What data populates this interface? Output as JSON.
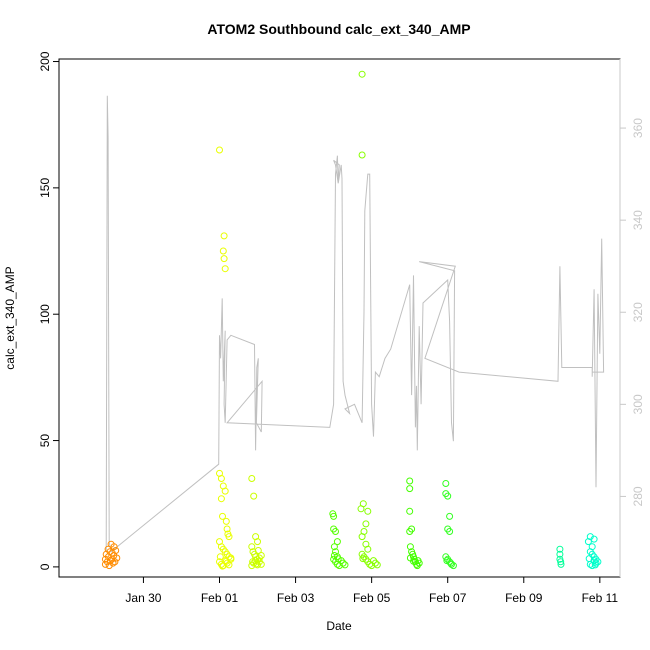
{
  "chart_data": {
    "type": "scatter",
    "title": "ATOM2 Southbound calc_ext_340_AMP",
    "xlabel": "Date",
    "ylabel": "calc_ext_340_AMP",
    "x_ticks": [
      "Jan 30",
      "Feb 01",
      "Feb 03",
      "Feb 05",
      "Feb 07",
      "Feb 09",
      "Feb 11"
    ],
    "x_tick_days": [
      0,
      2,
      4,
      6,
      8,
      10,
      12
    ],
    "xlim": [
      -2.22,
      12.53
    ],
    "ylim": [
      -4,
      201
    ],
    "y_ticks": [
      0,
      50,
      100,
      150,
      200
    ],
    "y2lim": [
      262.5,
      375
    ],
    "y2_ticks": [
      280,
      300,
      320,
      340,
      360
    ],
    "grid": false,
    "colors": {
      "axis": "#000000",
      "right_axis": "#c8c8c8",
      "line": "#c0c0c0"
    },
    "series": [
      {
        "type": "points",
        "clusters": [
          {
            "color": "#ff8c00",
            "points": [
              [
                -1.0,
                1
              ],
              [
                -1.0,
                3
              ],
              [
                -0.98,
                5
              ],
              [
                -0.95,
                2
              ],
              [
                -0.93,
                7
              ],
              [
                -0.92,
                4
              ],
              [
                -0.9,
                0.5
              ],
              [
                -0.88,
                6
              ],
              [
                -0.87,
                2.5
              ],
              [
                -0.85,
                9
              ],
              [
                -0.83,
                3
              ],
              [
                -0.82,
                5.5
              ],
              [
                -0.8,
                1.5
              ],
              [
                -0.78,
                4.5
              ],
              [
                -0.77,
                8
              ],
              [
                -0.75,
                2
              ],
              [
                -0.73,
                6.5
              ],
              [
                -0.7,
                3.5
              ]
            ]
          },
          {
            "color": "#e9ff00",
            "points": [
              [
                2.0,
                165
              ],
              [
                2.12,
                131
              ],
              [
                2.1,
                125
              ],
              [
                2.12,
                122
              ],
              [
                2.15,
                118
              ],
              [
                2.0,
                37
              ],
              [
                2.05,
                35
              ],
              [
                2.1,
                32
              ],
              [
                2.15,
                30
              ],
              [
                2.05,
                27
              ],
              [
                2.08,
                20
              ],
              [
                2.18,
                18
              ],
              [
                2.2,
                15
              ],
              [
                2.22,
                13
              ],
              [
                2.25,
                12
              ],
              [
                2.0,
                10
              ],
              [
                2.05,
                8
              ],
              [
                2.1,
                7
              ],
              [
                2.15,
                6
              ],
              [
                2.2,
                5
              ],
              [
                2.25,
                4
              ],
              [
                2.3,
                3
              ],
              [
                2.0,
                2
              ],
              [
                2.05,
                1
              ],
              [
                2.1,
                0.5
              ],
              [
                2.15,
                2.5
              ],
              [
                2.2,
                1.5
              ],
              [
                2.25,
                0.8
              ],
              [
                2.3,
                3.5
              ],
              [
                2.02,
                4
              ],
              [
                2.08,
                0.3
              ],
              [
                2.18,
                2.2
              ]
            ]
          },
          {
            "color": "#ccff00",
            "points": [
              [
                2.85,
                35
              ],
              [
                2.9,
                28
              ],
              [
                2.95,
                12
              ],
              [
                3.0,
                10
              ],
              [
                2.85,
                8
              ],
              [
                2.88,
                6
              ],
              [
                2.92,
                5
              ],
              [
                2.95,
                4
              ],
              [
                3.0,
                3
              ],
              [
                3.05,
                2
              ],
              [
                3.1,
                1
              ],
              [
                2.85,
                0.5
              ],
              [
                2.9,
                1.5
              ],
              [
                2.95,
                2.5
              ],
              [
                3.0,
                0.8
              ],
              [
                3.05,
                3.5
              ],
              [
                3.1,
                4.5
              ],
              [
                2.87,
                2
              ],
              [
                2.97,
                1.2
              ],
              [
                3.02,
                6.5
              ]
            ]
          },
          {
            "color": "#55ff00",
            "points": [
              [
                4.98,
                21
              ],
              [
                5.0,
                20
              ],
              [
                5.0,
                15
              ],
              [
                5.05,
                14
              ],
              [
                5.1,
                10
              ],
              [
                5.02,
                8
              ],
              [
                5.05,
                6
              ],
              [
                5.1,
                4
              ],
              [
                5.0,
                3
              ],
              [
                5.05,
                2
              ],
              [
                5.1,
                1
              ],
              [
                5.15,
                0.5
              ],
              [
                5.2,
                2.5
              ],
              [
                5.25,
                1.5
              ],
              [
                5.3,
                0.8
              ],
              [
                5.02,
                4.5
              ],
              [
                5.12,
                3.2
              ]
            ]
          },
          {
            "color": "#88ff00",
            "points": [
              [
                5.75,
                195
              ],
              [
                5.75,
                163
              ],
              [
                5.78,
                25
              ],
              [
                5.72,
                23
              ],
              [
                5.9,
                22
              ],
              [
                5.85,
                17
              ],
              [
                5.8,
                14
              ],
              [
                5.75,
                12
              ],
              [
                5.85,
                9
              ],
              [
                5.9,
                7
              ],
              [
                5.75,
                5
              ],
              [
                5.8,
                4
              ],
              [
                5.85,
                3
              ],
              [
                5.9,
                2
              ],
              [
                5.95,
                1
              ],
              [
                6.0,
                0.5
              ],
              [
                6.05,
                2.5
              ],
              [
                6.1,
                1.5
              ],
              [
                6.15,
                0.8
              ],
              [
                5.77,
                3.3
              ]
            ]
          },
          {
            "color": "#44ff00",
            "points": [
              [
                7.0,
                34
              ],
              [
                7.0,
                31
              ],
              [
                7.0,
                22
              ],
              [
                7.05,
                15
              ],
              [
                7.0,
                14
              ],
              [
                7.02,
                8
              ],
              [
                7.05,
                6
              ],
              [
                7.08,
                5
              ],
              [
                7.1,
                4
              ],
              [
                7.12,
                3
              ],
              [
                7.15,
                2
              ],
              [
                7.18,
                1
              ],
              [
                7.2,
                0.5
              ],
              [
                7.22,
                2.5
              ],
              [
                7.25,
                1.5
              ],
              [
                7.02,
                3.5
              ],
              [
                7.1,
                2.2
              ]
            ]
          },
          {
            "color": "#33ff22",
            "points": [
              [
                7.95,
                33
              ],
              [
                7.95,
                29
              ],
              [
                8.0,
                28
              ],
              [
                8.05,
                20
              ],
              [
                8.0,
                15
              ],
              [
                8.05,
                14
              ],
              [
                7.95,
                4
              ],
              [
                8.0,
                3
              ],
              [
                8.05,
                2
              ],
              [
                8.1,
                1
              ],
              [
                8.15,
                0.5
              ],
              [
                7.98,
                2.5
              ],
              [
                8.08,
                1.5
              ]
            ]
          },
          {
            "color": "#00ff99",
            "points": [
              [
                10.95,
                7
              ],
              [
                10.95,
                5
              ],
              [
                10.95,
                3
              ],
              [
                10.97,
                2
              ],
              [
                10.98,
                1
              ]
            ]
          },
          {
            "color": "#00ffcc",
            "points": [
              [
                11.75,
                12
              ],
              [
                11.85,
                11
              ],
              [
                11.7,
                10
              ],
              [
                11.8,
                8
              ],
              [
                11.75,
                6
              ],
              [
                11.8,
                5
              ],
              [
                11.85,
                4
              ],
              [
                11.9,
                3
              ],
              [
                11.95,
                2
              ],
              [
                11.75,
                1
              ],
              [
                11.8,
                0.5
              ],
              [
                11.85,
                2.5
              ],
              [
                11.9,
                1.5
              ],
              [
                11.72,
                3.3
              ],
              [
                11.88,
                0.8
              ]
            ]
          }
        ]
      },
      {
        "type": "line",
        "axis": "right",
        "color": "#c0c0c0",
        "points": [
          [
            -0.98,
            268
          ],
          [
            -0.95,
            367
          ],
          [
            -0.93,
            358
          ],
          [
            -0.9,
            270
          ],
          [
            -0.85,
            268
          ],
          [
            1.98,
            287
          ],
          [
            2.0,
            315
          ],
          [
            2.03,
            310
          ],
          [
            2.07,
            323
          ],
          [
            2.1,
            305
          ],
          [
            2.15,
            316
          ],
          [
            2.12,
            300
          ],
          [
            2.15,
            296
          ],
          [
            2.2,
            314
          ],
          [
            2.3,
            315
          ],
          [
            2.92,
            313
          ],
          [
            2.95,
            290
          ],
          [
            2.98,
            308
          ],
          [
            3.02,
            310
          ],
          [
            2.97,
            296
          ],
          [
            3.1,
            294
          ],
          [
            3.12,
            305
          ],
          [
            2.2,
            296
          ],
          [
            4.9,
            295
          ],
          [
            5.0,
            300
          ],
          [
            5.05,
            350
          ],
          [
            5.1,
            354
          ],
          [
            5.12,
            348
          ],
          [
            5.15,
            352
          ],
          [
            5.0,
            353
          ],
          [
            5.05,
            352
          ],
          [
            5.12,
            348
          ],
          [
            5.2,
            352
          ],
          [
            5.22,
            349
          ],
          [
            5.25,
            305
          ],
          [
            5.3,
            302
          ],
          [
            5.42,
            298
          ],
          [
            5.3,
            299
          ],
          [
            5.55,
            300
          ],
          [
            5.75,
            296
          ],
          [
            5.8,
            320
          ],
          [
            5.82,
            342
          ],
          [
            5.85,
            345
          ],
          [
            5.9,
            350
          ],
          [
            5.95,
            350
          ],
          [
            6.0,
            300
          ],
          [
            6.05,
            293
          ],
          [
            6.1,
            307
          ],
          [
            6.2,
            306
          ],
          [
            6.35,
            310
          ],
          [
            6.5,
            312
          ],
          [
            7.0,
            326
          ],
          [
            7.05,
            302
          ],
          [
            7.1,
            328
          ],
          [
            7.15,
            295
          ],
          [
            7.18,
            304
          ],
          [
            7.2,
            290
          ],
          [
            7.25,
            317
          ],
          [
            7.3,
            300
          ],
          [
            7.35,
            322
          ],
          [
            8.0,
            327
          ],
          [
            8.05,
            318
          ],
          [
            8.1,
            296
          ],
          [
            8.15,
            292
          ],
          [
            8.18,
            329
          ],
          [
            7.25,
            331
          ],
          [
            8.2,
            330
          ],
          [
            7.4,
            310
          ],
          [
            8.3,
            307
          ],
          [
            10.9,
            305
          ],
          [
            10.95,
            330
          ],
          [
            11.0,
            308
          ],
          [
            11.8,
            308
          ],
          [
            11.8,
            306
          ],
          [
            11.85,
            325
          ],
          [
            11.9,
            282
          ],
          [
            11.95,
            324
          ],
          [
            12.0,
            311
          ],
          [
            12.05,
            336
          ],
          [
            12.1,
            307
          ],
          [
            11.8,
            307
          ]
        ]
      }
    ]
  }
}
